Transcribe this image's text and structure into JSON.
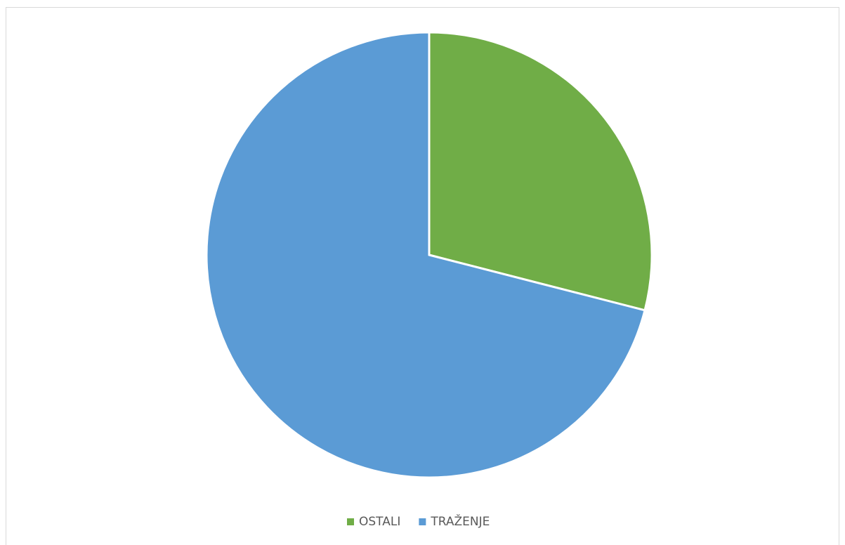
{
  "chart_data": {
    "type": "pie",
    "categories": [
      "OSTALI",
      "TRAŽENJE"
    ],
    "values": [
      29,
      71
    ],
    "colors": [
      "#70ad47",
      "#5b9bd5"
    ],
    "legend": "bottom"
  }
}
